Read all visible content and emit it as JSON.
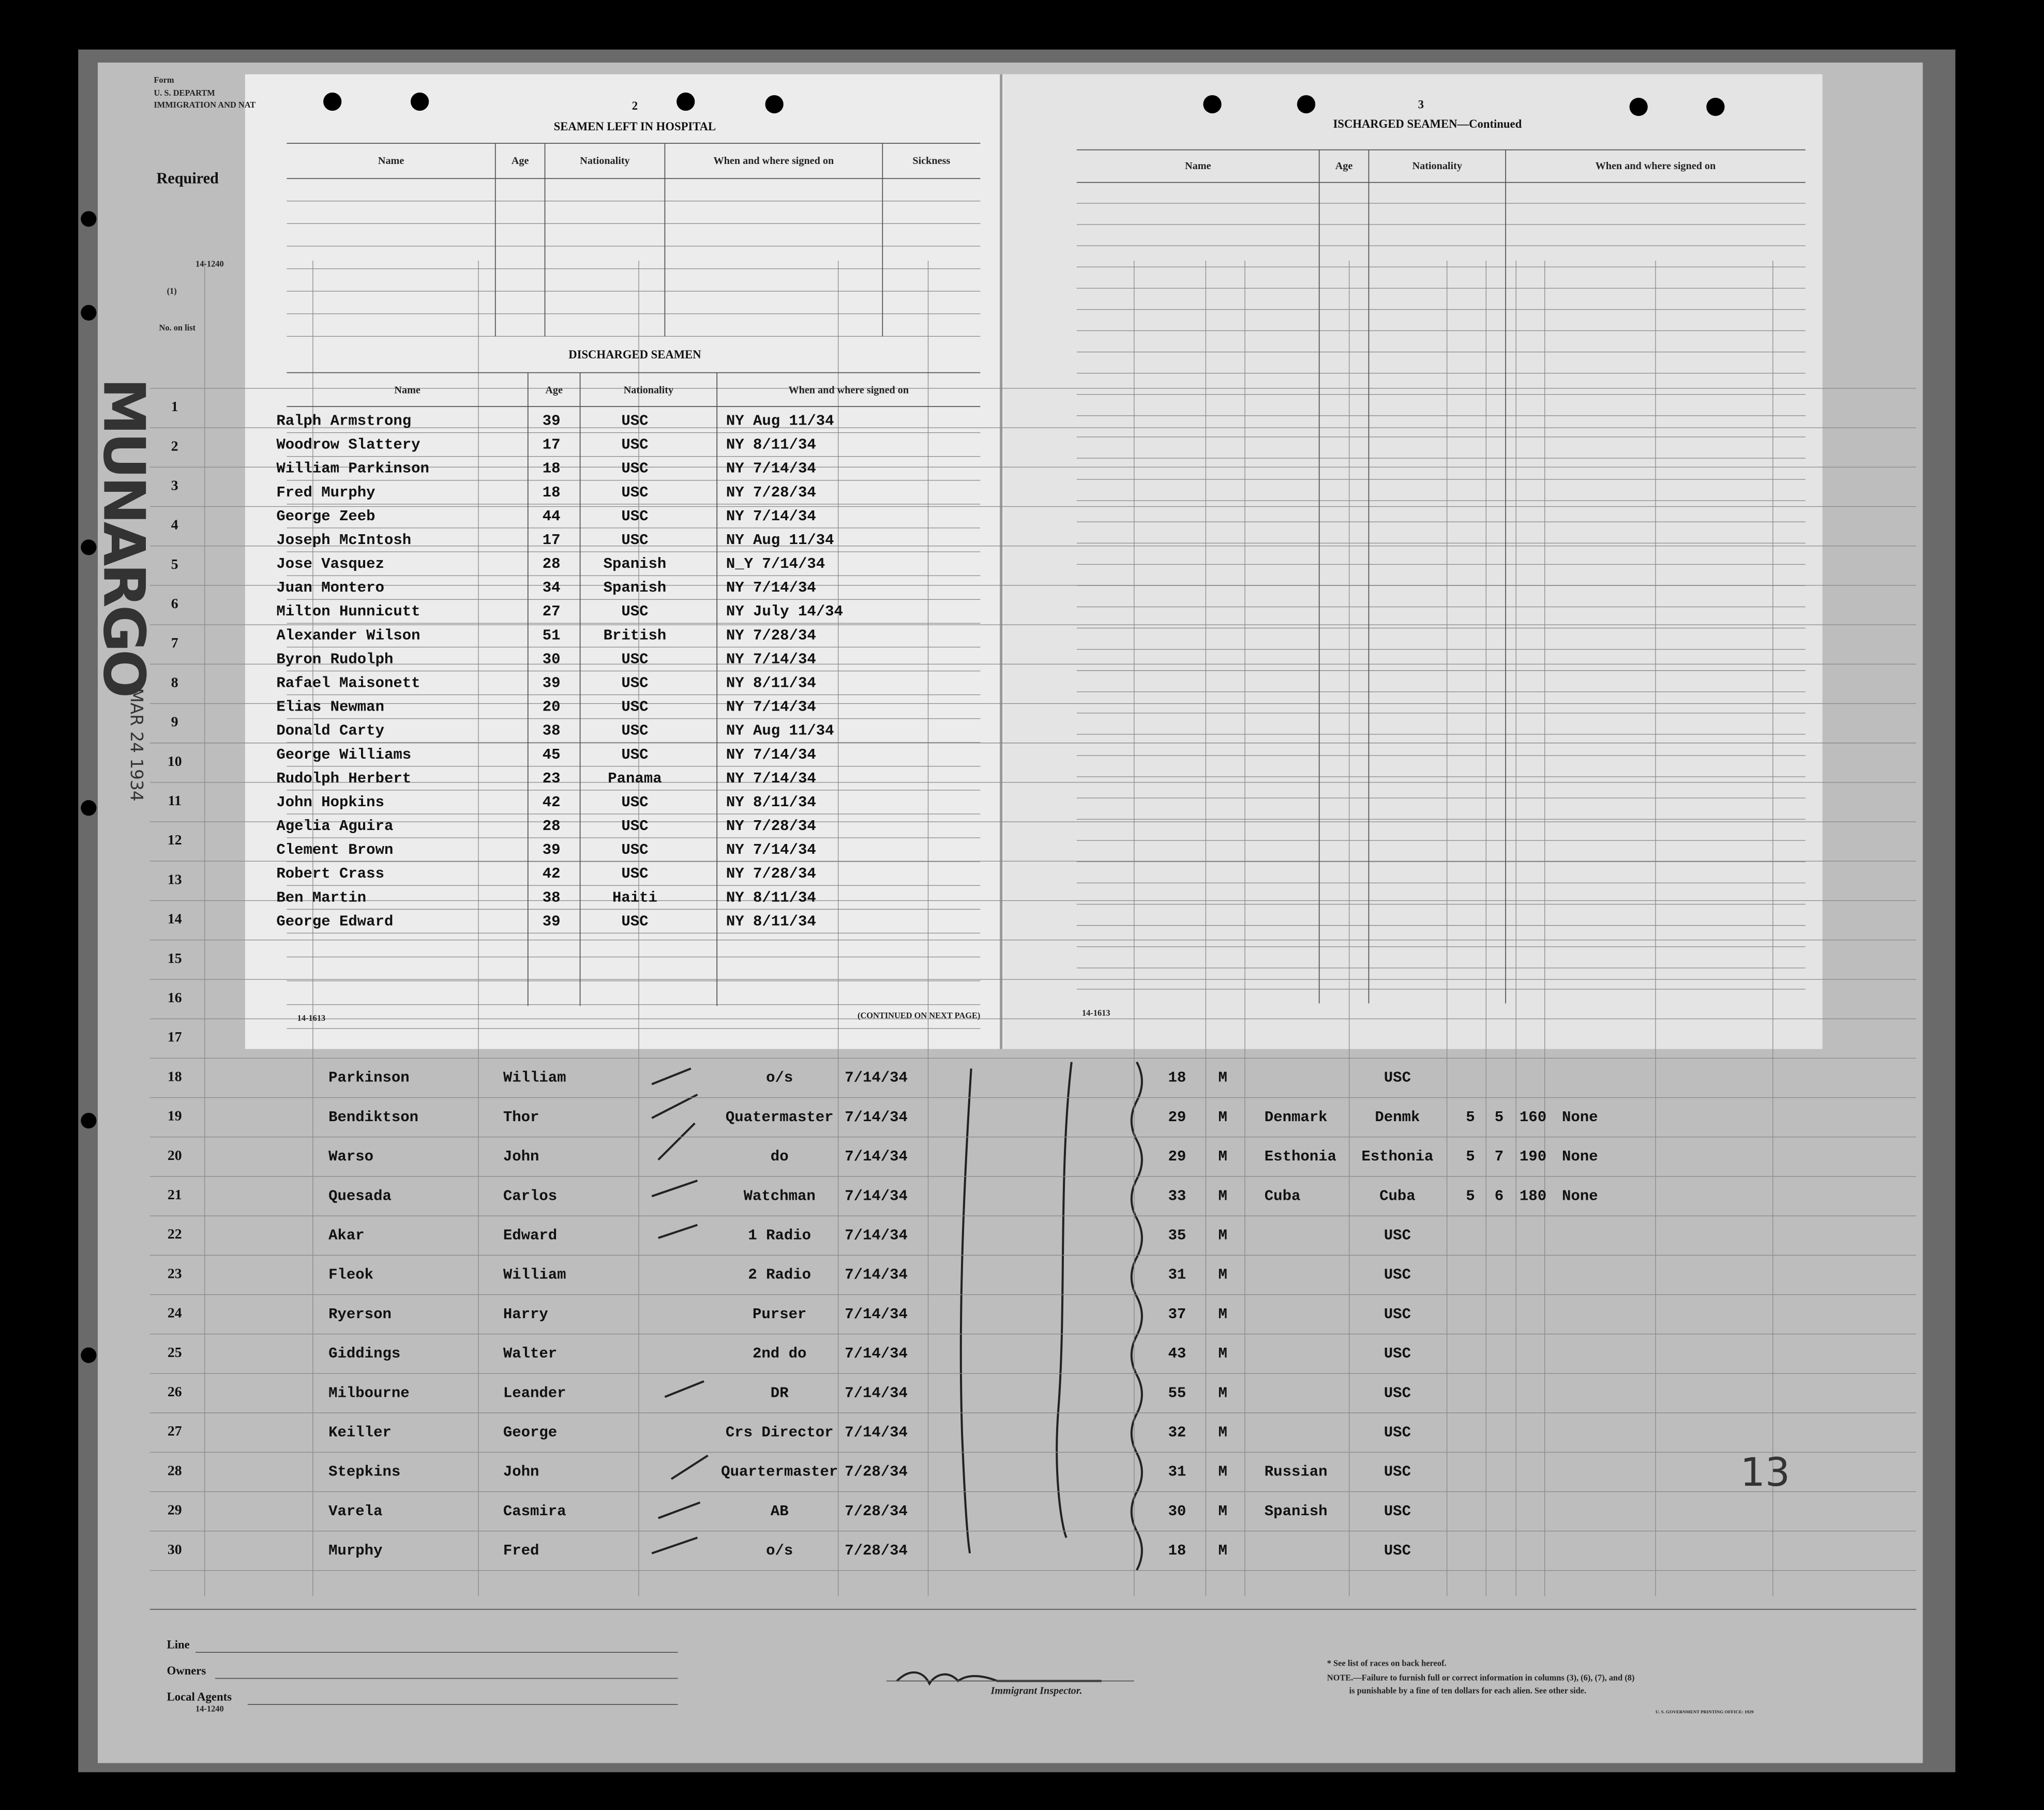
{
  "back_form": {
    "form": "Form",
    "department": "U. S. DEPARTM",
    "service": "IMMIGRATION AND NAT",
    "required": "Required",
    "form_no": "14-1240",
    "col_1": "(1)",
    "no_on_list": "No. on list",
    "handwritten_ship": "MUNARGO",
    "handwritten_date": "MAR 24 1934",
    "handwritten_page": "13",
    "row_numbers": [
      "1",
      "2",
      "3",
      "4",
      "5",
      "6",
      "7",
      "8",
      "9",
      "10",
      "11",
      "12",
      "13",
      "14",
      "15",
      "16",
      "17",
      "18",
      "19",
      "20",
      "21",
      "22",
      "23",
      "24",
      "25",
      "26",
      "27",
      "28",
      "29",
      "30"
    ],
    "crew_rows": [
      {
        "surname": "Parkinson",
        "given_name": "William",
        "capacity": "o/s",
        "signed_on": "7/14/34",
        "age": "18",
        "sex": "M",
        "nationality": "USC"
      },
      {
        "surname": "Bendiktson",
        "given_name": "Thor",
        "capacity": "Quatermaster",
        "signed_on": "7/14/34",
        "age": "29",
        "sex": "M",
        "race": "Denmark",
        "nationality": "Denmk",
        "height_ft": "5",
        "height_in": "5",
        "weight": "160",
        "marks": "None"
      },
      {
        "surname": "Warso",
        "given_name": "John",
        "capacity": "do",
        "signed_on": "7/14/34",
        "age": "29",
        "sex": "M",
        "race": "Esthonia",
        "nationality": "Esthonia",
        "height_ft": "5",
        "height_in": "7",
        "weight": "190",
        "marks": "None"
      },
      {
        "surname": "Quesada",
        "given_name": "Carlos",
        "capacity": "Watchman",
        "signed_on": "7/14/34",
        "age": "33",
        "sex": "M",
        "race": "Cuba",
        "nationality": "Cuba",
        "height_ft": "5",
        "height_in": "6",
        "weight": "180",
        "marks": "None"
      },
      {
        "surname": "Akar",
        "given_name": "Edward",
        "capacity": "1 Radio",
        "signed_on": "7/14/34",
        "age": "35",
        "sex": "M",
        "nationality": "USC"
      },
      {
        "surname": "Fleok",
        "given_name": "William",
        "capacity": "2 Radio",
        "signed_on": "7/14/34",
        "age": "31",
        "sex": "M",
        "nationality": "USC"
      },
      {
        "surname": "Ryerson",
        "given_name": "Harry",
        "capacity": "Purser",
        "signed_on": "7/14/34",
        "age": "37",
        "sex": "M",
        "nationality": "USC"
      },
      {
        "surname": "Giddings",
        "given_name": "Walter",
        "capacity": "2nd do",
        "signed_on": "7/14/34",
        "age": "43",
        "sex": "M",
        "nationality": "USC"
      },
      {
        "surname": "Milbourne",
        "given_name": "Leander",
        "capacity": "DR",
        "signed_on": "7/14/34",
        "age": "55",
        "sex": "M",
        "nationality": "USC"
      },
      {
        "surname": "Keiller",
        "given_name": "George",
        "capacity": "Crs Director",
        "signed_on": "7/14/34",
        "age": "32",
        "sex": "M",
        "nationality": "USC"
      },
      {
        "surname": "Stepkins",
        "given_name": "John",
        "capacity": "Quartermaster",
        "signed_on": "7/28/34",
        "age": "31",
        "sex": "M",
        "race": "Russian",
        "nationality": "USC"
      },
      {
        "surname": "Varela",
        "given_name": "Casmira",
        "capacity": "AB",
        "signed_on": "7/28/34",
        "age": "30",
        "sex": "M",
        "race": "Spanish",
        "nationality": "USC"
      },
      {
        "surname": "Murphy",
        "given_name": "Fred",
        "capacity": "o/s",
        "signed_on": "7/28/34",
        "age": "18",
        "sex": "M",
        "nationality": "USC"
      }
    ]
  },
  "left_page": {
    "page_number": "2",
    "hospital_title": "SEAMEN LEFT IN HOSPITAL",
    "hospital_headers": [
      "Name",
      "Age",
      "Nationality",
      "When and where signed on",
      "Sickness"
    ],
    "discharged_title": "DISCHARGED SEAMEN",
    "discharged_headers": [
      "Name",
      "Age",
      "Nationality",
      "When and where signed on"
    ],
    "discharged_rows": [
      [
        "Ralph  Armstrong",
        "39",
        "USC",
        "NY  Aug 11/34"
      ],
      [
        "Woodrow Slattery",
        "17",
        "USC",
        "NY  8/11/34"
      ],
      [
        "William Parkinson",
        "18",
        "USC",
        "NY  7/14/34"
      ],
      [
        "Fred Murphy",
        "18",
        "USC",
        "NY  7/28/34"
      ],
      [
        "George Zeeb",
        "44",
        "USC",
        "NY  7/14/34"
      ],
      [
        "Joseph McIntosh",
        "17",
        "USC",
        "NY Aug 11/34"
      ],
      [
        "Jose Vasquez",
        "28",
        "Spanish",
        "N_Y 7/14/34"
      ],
      [
        "Juan Montero",
        "34",
        "Spanish",
        "NY 7/14/34"
      ],
      [
        "Milton Hunnicutt",
        "27",
        "USC",
        "NY July 14/34"
      ],
      [
        "Alexander Wilson",
        "51",
        "British",
        "NY  7/28/34"
      ],
      [
        "Byron Rudolph",
        "30",
        "USC",
        "NY 7/14/34"
      ],
      [
        "Rafael Maisonett",
        "39",
        "USC",
        "NY 8/11/34"
      ],
      [
        "Elias Newman",
        "20",
        "USC",
        "NY 7/14/34"
      ],
      [
        "Donald Carty",
        "38",
        "USC",
        "NY Aug 11/34"
      ],
      [
        "George Williams",
        "45",
        "USC",
        "NY 7/14/34"
      ],
      [
        "Rudolph Herbert",
        "23",
        "Panama",
        "NY 7/14/34"
      ],
      [
        "John Hopkins",
        "42",
        "USC",
        "NY 8/11/34"
      ],
      [
        "Agelia Aguira",
        "28",
        "USC",
        "NY 7/28/34"
      ],
      [
        "Clement Brown",
        "39",
        "USC",
        "NY 7/14/34"
      ],
      [
        "Robert Crass",
        "42",
        "USC",
        "NY 7/28/34"
      ],
      [
        "Ben Martin",
        "38",
        "Haiti",
        "NY 8/11/34"
      ],
      [
        "George Edward",
        "39",
        "USC",
        "NY 8/11/34"
      ]
    ],
    "form_no": "14-1613",
    "continued": "(CONTINUED ON NEXT PAGE)"
  },
  "right_page": {
    "page_number": "3",
    "title": "ISCHARGED SEAMEN—Continued",
    "headers": [
      "Name",
      "Age",
      "Nationality",
      "When and where signed on"
    ],
    "form_no": "14-1613"
  },
  "footer": {
    "line": "Line",
    "owners": "Owners",
    "local_agents": "Local Agents",
    "form_no": "14-1240",
    "inspector": "Immigrant Inspector.",
    "note_races": "* See list of races on back hereof.",
    "note_1": "NOTE.—Failure to furnish full or correct information in columns (3), (6), (7), and (8)",
    "note_2": "is punishable by a fine of ten dollars for each alien.   See other side.",
    "printer": "U. S. GOVERNMENT PRINTING OFFICE: 1929"
  }
}
